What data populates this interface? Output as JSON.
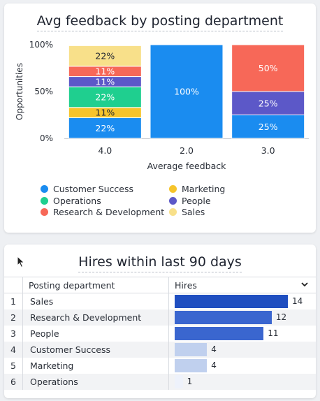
{
  "chart_card": {
    "title": "Avg feedback by posting department",
    "chart_data": {
      "type": "bar",
      "stacked": true,
      "percent": true,
      "categories": [
        "4.0",
        "2.0",
        "3.0"
      ],
      "xlabel": "Average feedback",
      "ylabel": "Opportunities",
      "yticks": [
        "100%",
        "50%",
        "0%"
      ],
      "ylim": [
        0,
        100
      ],
      "series": [
        {
          "name": "Customer Success",
          "color": "#1a8cf0",
          "values": [
            22,
            100,
            25
          ],
          "labels": [
            "22%",
            "100%",
            "25%"
          ]
        },
        {
          "name": "Marketing",
          "color": "#f6c42b",
          "values": [
            11,
            0,
            0
          ],
          "labels": [
            "11%",
            "",
            ""
          ]
        },
        {
          "name": "Operations",
          "color": "#1fcf8f",
          "values": [
            22,
            0,
            0
          ],
          "labels": [
            "22%",
            "",
            ""
          ]
        },
        {
          "name": "People",
          "color": "#5c58c8",
          "values": [
            11,
            0,
            25
          ],
          "labels": [
            "11%",
            "",
            "25%"
          ]
        },
        {
          "name": "Research & Development",
          "color": "#f76858",
          "values": [
            11,
            0,
            50
          ],
          "labels": [
            "11%",
            "",
            "50%"
          ]
        },
        {
          "name": "Sales",
          "color": "#f8e08a",
          "values": [
            22,
            0,
            0
          ],
          "labels": [
            "22%",
            "",
            ""
          ]
        }
      ],
      "legend_position": "bottom"
    }
  },
  "table_card": {
    "title": "Hires within last 90 days",
    "columns": [
      "Posting department",
      "Hires"
    ],
    "sort_icon": "chevron-down-icon",
    "max": 14,
    "rows": [
      {
        "index": "1",
        "department": "Sales",
        "hires": 14
      },
      {
        "index": "2",
        "department": "Research & Development",
        "hires": 12
      },
      {
        "index": "3",
        "department": "People",
        "hires": 11
      },
      {
        "index": "4",
        "department": "Customer Success",
        "hires": 4
      },
      {
        "index": "5",
        "department": "Marketing",
        "hires": 4
      },
      {
        "index": "6",
        "department": "Operations",
        "hires": 1
      }
    ]
  }
}
